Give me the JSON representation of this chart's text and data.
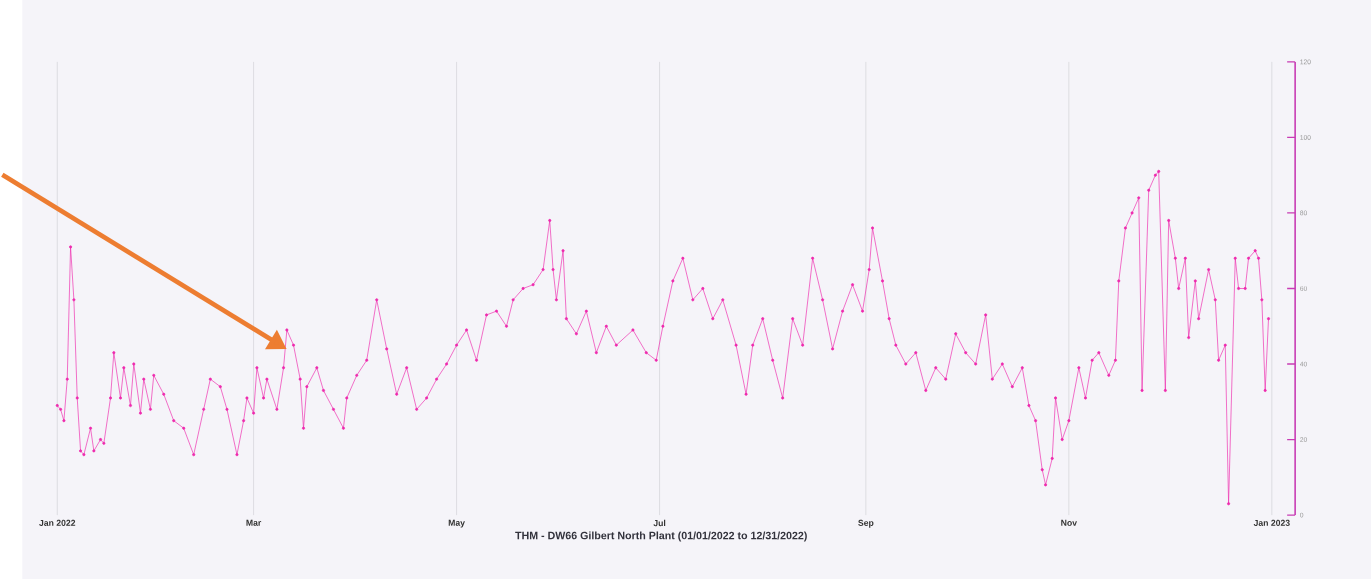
{
  "chart_data": {
    "type": "line",
    "xlabel": "THM - DW66 Gilbert North Plant (01/01/2022 to 12/31/2022)",
    "xlim": [
      "2021-12-23",
      "2023-01-08"
    ],
    "xticks": [
      {
        "value": "2022-01-01",
        "label": "Jan 2022"
      },
      {
        "value": "2022-03-01",
        "label": "Mar"
      },
      {
        "value": "2022-05-01",
        "label": "May"
      },
      {
        "value": "2022-07-01",
        "label": "Jul"
      },
      {
        "value": "2022-09-01",
        "label": "Sep"
      },
      {
        "value": "2022-11-01",
        "label": "Nov"
      },
      {
        "value": "2023-01-01",
        "label": "Jan 2023"
      }
    ],
    "y2lim": [
      0,
      120
    ],
    "y2ticks": [
      0,
      20,
      40,
      60,
      80,
      100,
      120
    ],
    "grid": "x",
    "marker": "circle",
    "line_style": "solid",
    "series": [
      {
        "color": "#ee2aae",
        "axis": "y2",
        "x": [
          "2022-01-01",
          "2022-01-02",
          "2022-01-03",
          "2022-01-04",
          "2022-01-05",
          "2022-01-06",
          "2022-01-07",
          "2022-01-08",
          "2022-01-09",
          "2022-01-11",
          "2022-01-12",
          "2022-01-14",
          "2022-01-15",
          "2022-01-17",
          "2022-01-18",
          "2022-01-20",
          "2022-01-21",
          "2022-01-23",
          "2022-01-24",
          "2022-01-26",
          "2022-01-27",
          "2022-01-29",
          "2022-01-30",
          "2022-02-02",
          "2022-02-05",
          "2022-02-08",
          "2022-02-11",
          "2022-02-14",
          "2022-02-16",
          "2022-02-19",
          "2022-02-21",
          "2022-02-24",
          "2022-02-26",
          "2022-02-27",
          "2022-03-01",
          "2022-03-02",
          "2022-03-04",
          "2022-03-05",
          "2022-03-08",
          "2022-03-10",
          "2022-03-11",
          "2022-03-13",
          "2022-03-15",
          "2022-03-16",
          "2022-03-17",
          "2022-03-20",
          "2022-03-22",
          "2022-03-25",
          "2022-03-28",
          "2022-03-29",
          "2022-04-01",
          "2022-04-04",
          "2022-04-07",
          "2022-04-10",
          "2022-04-13",
          "2022-04-16",
          "2022-04-19",
          "2022-04-22",
          "2022-04-25",
          "2022-04-28",
          "2022-05-01",
          "2022-05-04",
          "2022-05-07",
          "2022-05-10",
          "2022-05-13",
          "2022-05-16",
          "2022-05-18",
          "2022-05-21",
          "2022-05-24",
          "2022-05-27",
          "2022-05-29",
          "2022-05-30",
          "2022-05-31",
          "2022-06-02",
          "2022-06-03",
          "2022-06-06",
          "2022-06-09",
          "2022-06-12",
          "2022-06-15",
          "2022-06-18",
          "2022-06-23",
          "2022-06-27",
          "2022-06-30",
          "2022-07-02",
          "2022-07-05",
          "2022-07-08",
          "2022-07-11",
          "2022-07-14",
          "2022-07-17",
          "2022-07-20",
          "2022-07-24",
          "2022-07-27",
          "2022-07-29",
          "2022-08-01",
          "2022-08-04",
          "2022-08-07",
          "2022-08-10",
          "2022-08-13",
          "2022-08-16",
          "2022-08-19",
          "2022-08-22",
          "2022-08-25",
          "2022-08-28",
          "2022-08-31",
          "2022-09-02",
          "2022-09-03",
          "2022-09-06",
          "2022-09-08",
          "2022-09-10",
          "2022-09-13",
          "2022-09-16",
          "2022-09-19",
          "2022-09-22",
          "2022-09-25",
          "2022-09-28",
          "2022-10-01",
          "2022-10-04",
          "2022-10-07",
          "2022-10-09",
          "2022-10-12",
          "2022-10-15",
          "2022-10-18",
          "2022-10-20",
          "2022-10-22",
          "2022-10-24",
          "2022-10-25",
          "2022-10-27",
          "2022-10-28",
          "2022-10-30",
          "2022-11-01",
          "2022-11-04",
          "2022-11-06",
          "2022-11-08",
          "2022-11-10",
          "2022-11-13",
          "2022-11-15",
          "2022-11-16",
          "2022-11-18",
          "2022-11-20",
          "2022-11-22",
          "2022-11-23",
          "2022-11-25",
          "2022-11-27",
          "2022-11-28",
          "2022-11-30",
          "2022-12-01",
          "2022-12-03",
          "2022-12-04",
          "2022-12-06",
          "2022-12-07",
          "2022-12-09",
          "2022-12-10",
          "2022-12-13",
          "2022-12-15",
          "2022-12-16",
          "2022-12-18",
          "2022-12-19",
          "2022-12-21",
          "2022-12-22",
          "2022-12-24",
          "2022-12-25",
          "2022-12-27",
          "2022-12-28",
          "2022-12-29",
          "2022-12-30",
          "2022-12-31"
        ],
        "values": [
          29,
          28,
          25,
          36,
          71,
          57,
          31,
          17,
          16,
          23,
          17,
          20,
          19,
          31,
          43,
          31,
          39,
          29,
          40,
          27,
          36,
          28,
          37,
          32,
          25,
          23,
          16,
          28,
          36,
          34,
          28,
          16,
          25,
          31,
          27,
          39,
          31,
          36,
          28,
          39,
          49,
          45,
          36,
          23,
          34,
          39,
          33,
          28,
          23,
          31,
          37,
          41,
          57,
          44,
          32,
          39,
          28,
          31,
          36,
          40,
          45,
          49,
          41,
          53,
          54,
          50,
          57,
          60,
          61,
          65,
          78,
          65,
          57,
          70,
          52,
          48,
          54,
          43,
          50,
          45,
          49,
          43,
          41,
          50,
          62,
          68,
          57,
          60,
          52,
          57,
          45,
          32,
          45,
          52,
          41,
          31,
          52,
          45,
          68,
          57,
          44,
          54,
          61,
          54,
          65,
          76,
          62,
          52,
          45,
          40,
          43,
          33,
          39,
          36,
          48,
          43,
          40,
          53,
          36,
          40,
          34,
          39,
          29,
          25,
          12,
          8,
          15,
          31,
          20,
          25,
          39,
          31,
          41,
          43,
          37,
          41,
          62,
          76,
          80,
          84,
          33,
          86,
          90,
          91,
          33,
          78,
          68,
          60,
          68,
          47,
          62,
          52,
          65,
          57,
          41,
          45,
          3,
          68,
          60,
          60,
          68,
          70,
          68,
          57,
          33,
          52
        ]
      }
    ]
  }
}
